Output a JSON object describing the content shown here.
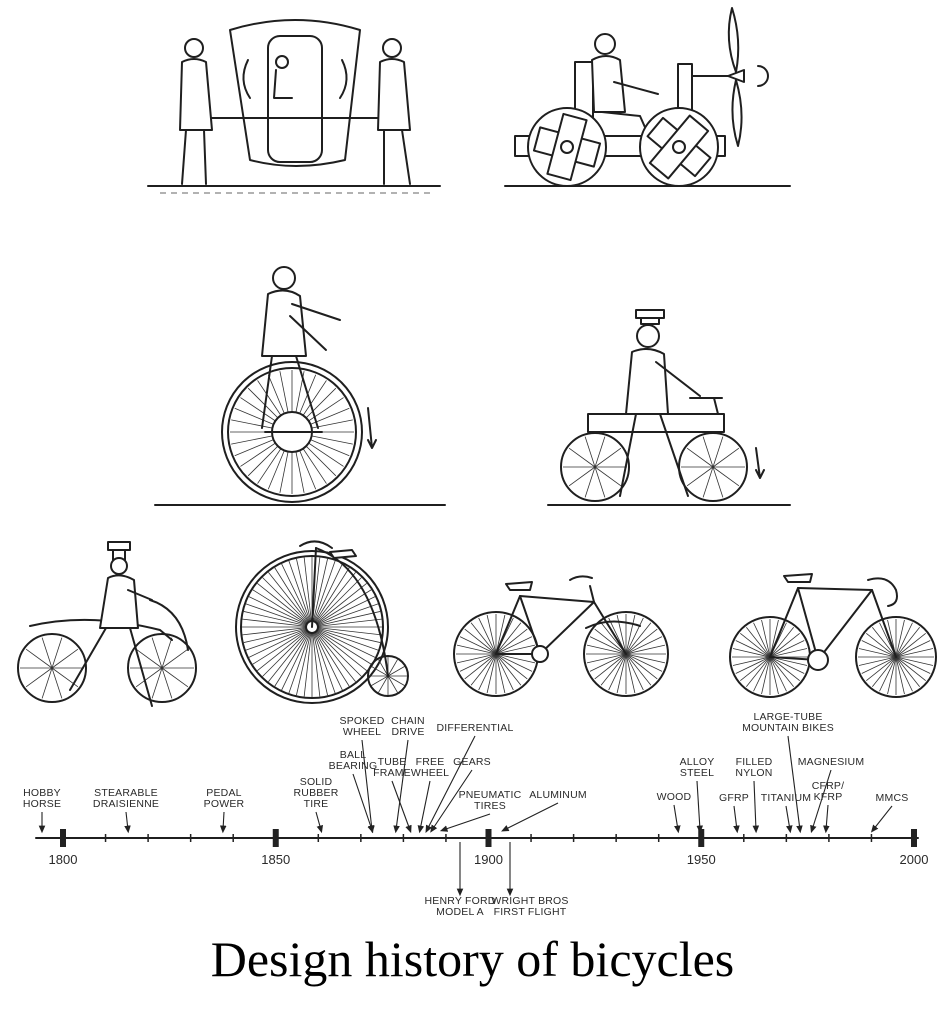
{
  "caption": "Design history of bicycles",
  "illustrations": [
    {
      "name": "sedan-chair-illustration"
    },
    {
      "name": "propeller-cart-illustration"
    },
    {
      "name": "unicycle-illustration"
    },
    {
      "name": "draisine-cart-illustration"
    },
    {
      "name": "hobby-horse-illustration"
    },
    {
      "name": "penny-farthing-illustration"
    },
    {
      "name": "safety-bicycle-illustration"
    },
    {
      "name": "racing-bicycle-illustration"
    }
  ],
  "timeline": {
    "start_year": 1800,
    "end_year": 2000,
    "year_labels": [
      "1800",
      "1850",
      "1900",
      "1950",
      "2000"
    ],
    "events_above": [
      {
        "label": "HOBBY\nHORSE",
        "year": 1818
      },
      {
        "label": "STEARABLE\nDRAISIENNE",
        "year": 1816
      },
      {
        "label": "PEDAL\nPOWER",
        "year": 1839
      },
      {
        "label": "SOLID\nRUBBER\nTIRE",
        "year": 1868
      },
      {
        "label": "BALL\nBEARING",
        "year": 1877
      },
      {
        "label": "SPOKED\nWHEEL",
        "year": 1874
      },
      {
        "label": "CHAIN\nDRIVE",
        "year": 1880
      },
      {
        "label": "TUBE\nFRAME",
        "year": 1884
      },
      {
        "label": "FREE\nWHEEL",
        "year": 1887
      },
      {
        "label": "GEARS",
        "year": 1889
      },
      {
        "label": "DIFFERENTIAL",
        "year": 1889
      },
      {
        "label": "PNEUMATIC\nTIRES",
        "year": 1888
      },
      {
        "label": "ALUMINUM",
        "year": 1904
      },
      {
        "label": "WOOD",
        "year": 1945
      },
      {
        "label": "ALLOY\nSTEEL",
        "year": 1950
      },
      {
        "label": "GFRP",
        "year": 1957
      },
      {
        "label": "FILLED\nNYLON",
        "year": 1962
      },
      {
        "label": "TITANIUM",
        "year": 1970
      },
      {
        "label": "LARGE-TUBE\nMOUNTAIN BIKES",
        "year": 1975
      },
      {
        "label": "MAGNESIUM",
        "year": 1978
      },
      {
        "label": "CFRP/\nKFRP",
        "year": 1982
      },
      {
        "label": "MMCS",
        "year": 1989
      }
    ],
    "events_below": [
      {
        "label": "HENRY FORD\nMODEL A",
        "year": 1903
      },
      {
        "label": "WRIGHT BROS\nFIRST FLIGHT",
        "year": 1905
      }
    ]
  }
}
